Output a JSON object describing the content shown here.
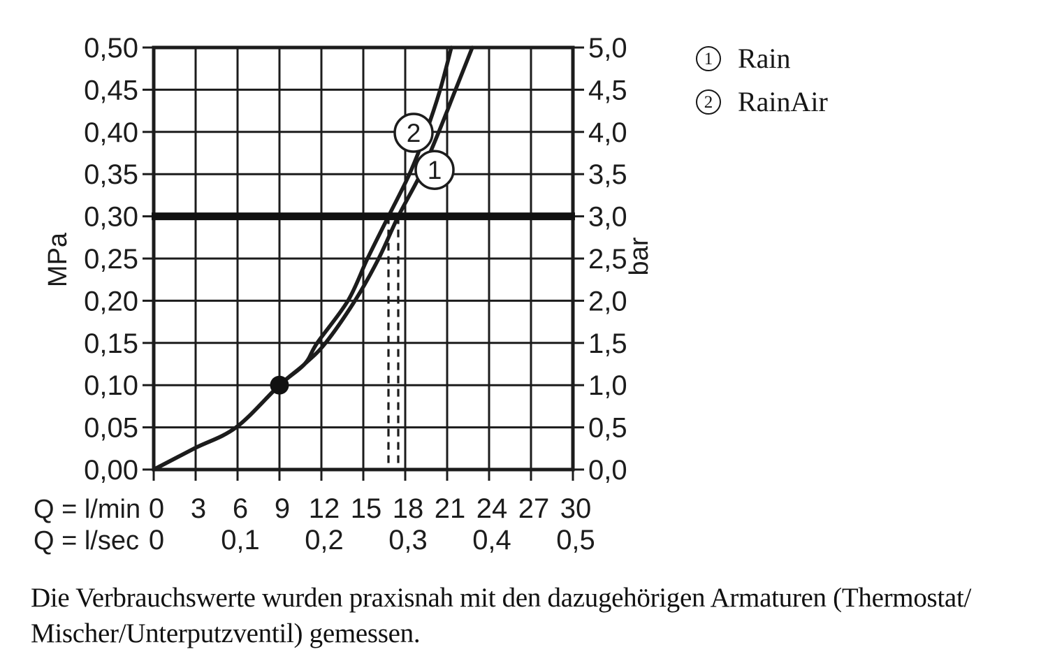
{
  "legend": {
    "items": [
      {
        "num": "1",
        "label": "Rain"
      },
      {
        "num": "2",
        "label": "RainAir"
      }
    ]
  },
  "footnote": {
    "line1": "Die Verbrauchswerte wurden praxisnah mit den dazugehörigen Armaturen (Thermostat/",
    "line2": "Mischer/Unterputzventil) gemessen."
  },
  "chart_data": {
    "type": "line",
    "title": "",
    "grid": true,
    "legend_position": "top-right",
    "colors": {
      "ink": "#1c1c1c",
      "background": "#ffffff"
    },
    "x_axis": {
      "label_lmin": "Q = l/min",
      "label_lsec": "Q = l/sec",
      "range_lmin": [
        0,
        30
      ],
      "lmin_ticks": [
        0,
        3,
        6,
        9,
        12,
        15,
        18,
        21,
        24,
        27,
        30
      ],
      "lsec_ticks": [
        {
          "text": "0",
          "lmin": 0
        },
        {
          "text": "0,1",
          "lmin": 6
        },
        {
          "text": "0,2",
          "lmin": 12
        },
        {
          "text": "0,3",
          "lmin": 18
        },
        {
          "text": "0,4",
          "lmin": 24
        },
        {
          "text": "0,5",
          "lmin": 30
        }
      ]
    },
    "y_axis_left": {
      "label": "MPa",
      "range_mpa": [
        0,
        0.5
      ],
      "step": 0.05,
      "ticks": [
        "0,00",
        "0,05",
        "0,10",
        "0,15",
        "0,20",
        "0,25",
        "0,30",
        "0,35",
        "0,40",
        "0,45",
        "0,50"
      ]
    },
    "y_axis_right": {
      "label": "bar",
      "range_bar": [
        0,
        5
      ],
      "ticks": [
        "0,0",
        "0,5",
        "1,0",
        "1,5",
        "2,0",
        "2,5",
        "3,0",
        "3,5",
        "4,0",
        "4,5",
        "5,0"
      ]
    },
    "series": [
      {
        "id": "1",
        "name": "Rain",
        "points_mpa_lmin": [
          [
            0,
            0
          ],
          [
            0.025,
            2.9
          ],
          [
            0.05,
            5.9
          ],
          [
            0.1,
            9.0
          ],
          [
            0.125,
            10.8
          ],
          [
            0.15,
            12.3
          ],
          [
            0.2,
            14.4
          ],
          [
            0.25,
            16.1
          ],
          [
            0.3,
            17.5
          ],
          [
            0.35,
            19.1
          ],
          [
            0.4,
            20.4
          ],
          [
            0.45,
            21.6
          ],
          [
            0.5,
            22.8
          ]
        ]
      },
      {
        "id": "2",
        "name": "RainAir",
        "points_mpa_lmin": [
          [
            0,
            0
          ],
          [
            0.025,
            2.9
          ],
          [
            0.05,
            5.9
          ],
          [
            0.1,
            9.0
          ],
          [
            0.125,
            10.8
          ],
          [
            0.15,
            11.7
          ],
          [
            0.2,
            13.9
          ],
          [
            0.25,
            15.3
          ],
          [
            0.3,
            16.8
          ],
          [
            0.35,
            18.3
          ],
          [
            0.4,
            19.5
          ],
          [
            0.45,
            20.5
          ],
          [
            0.5,
            21.3
          ]
        ]
      }
    ],
    "reference_line": {
      "mpa": 0.3,
      "bar": 3.0
    },
    "operating_point": {
      "lmin": 9,
      "mpa": 0.1
    },
    "dashed_lines_lmin": [
      16.8,
      17.5
    ],
    "series_labels": [
      {
        "num": "2",
        "lmin": 18.6,
        "mpa": 0.399
      },
      {
        "num": "1",
        "lmin": 20.1,
        "mpa": 0.355
      }
    ]
  }
}
